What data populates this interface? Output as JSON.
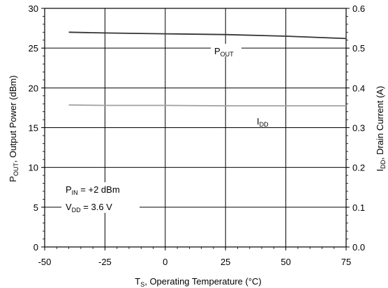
{
  "chart_data": {
    "type": "line",
    "xlabel": {
      "main": "T",
      "sub": "S",
      "rest": ", Operating Temperature (°C)"
    },
    "ylabel_left": {
      "main": "P",
      "sub": "OUT",
      "rest": ", Output Power (dBm)"
    },
    "ylabel_right": {
      "main": "I",
      "sub": "DD",
      "rest": ", Drain Current (A)"
    },
    "xlim": [
      -50,
      75
    ],
    "ylim_left": [
      0,
      30
    ],
    "ylim_right": [
      0.0,
      0.6
    ],
    "x_ticks": [
      "-50",
      "-25",
      "0",
      "25",
      "50",
      "75"
    ],
    "y_ticks_left": [
      "0",
      "5",
      "10",
      "15",
      "20",
      "25",
      "30"
    ],
    "y_ticks_right": [
      "0.0",
      "0.1",
      "0.2",
      "0.3",
      "0.4",
      "0.5",
      "0.6"
    ],
    "grid": true,
    "series": [
      {
        "name": "POUT",
        "axis": "left",
        "color": "#333333",
        "x": [
          -40,
          -25,
          0,
          25,
          50,
          75
        ],
        "y": [
          27.0,
          26.9,
          26.8,
          26.7,
          26.5,
          26.2
        ]
      },
      {
        "name": "IDD",
        "axis": "right",
        "color": "#a0a0a0",
        "x": [
          -40,
          -25,
          0,
          25,
          50,
          75
        ],
        "y": [
          0.357,
          0.356,
          0.356,
          0.355,
          0.355,
          0.355
        ]
      }
    ],
    "labels": {
      "pout": {
        "main": "P",
        "sub": "OUT"
      },
      "idd": {
        "main": "I",
        "sub": "DD"
      }
    },
    "conditions": [
      {
        "main": "P",
        "sub": "IN",
        "rest": " = +2 dBm"
      },
      {
        "main": "V",
        "sub": "DD",
        "rest": " = 3.6 V"
      }
    ]
  }
}
